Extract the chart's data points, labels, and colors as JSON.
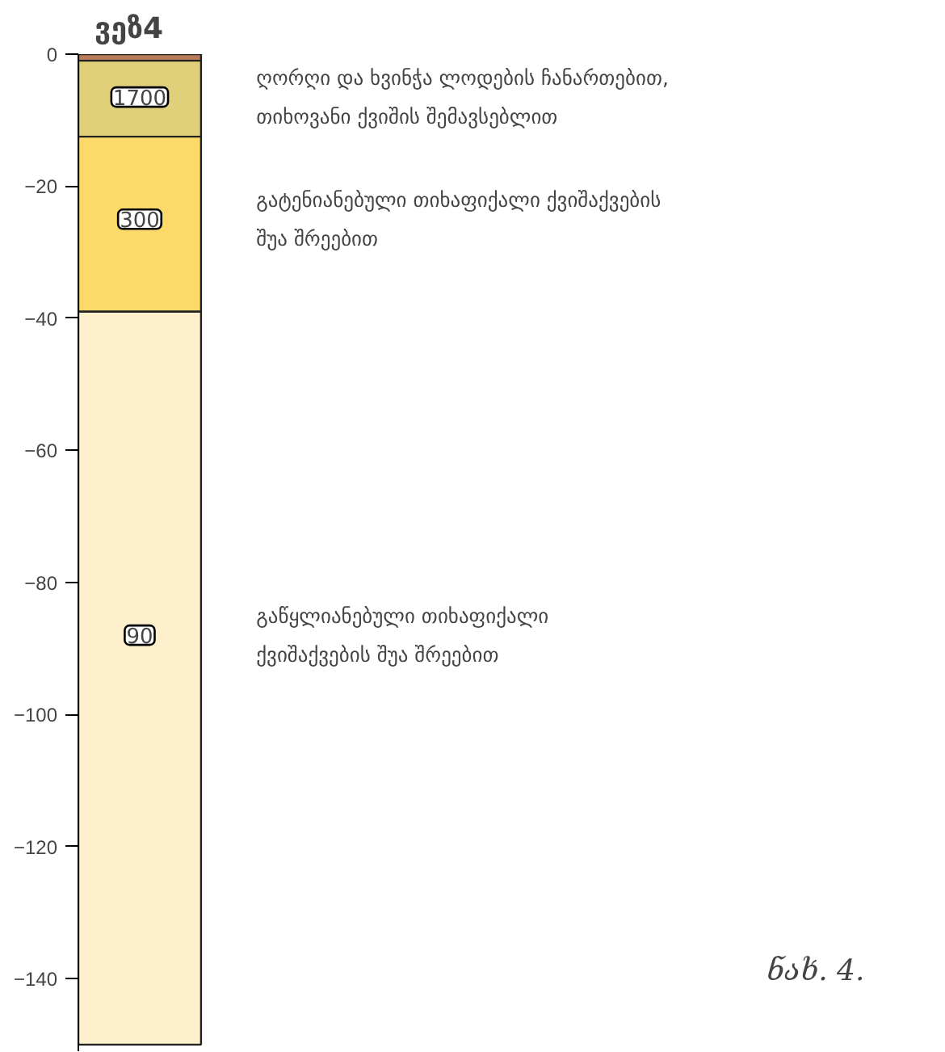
{
  "chart_data": {
    "type": "bar",
    "title": "ვეზ4",
    "categories": [
      null
    ],
    "stacked": true,
    "series": [
      {
        "color": "#b87a5a",
        "values": [
          -1
        ]
      },
      {
        "color": "#e0d07a",
        "values": [
          -11.5
        ]
      },
      {
        "color": "#fdd96a",
        "values": [
          -26.5
        ]
      },
      {
        "color": "#fef0cc",
        "values": [
          -111
        ]
      }
    ],
    "ylim": [
      -151,
      0
    ],
    "yticks": [
      0,
      -20,
      -40,
      -60,
      -80,
      -100,
      -120,
      -140
    ],
    "grid": false,
    "annotations": [
      {
        "text": "1700",
        "y": -6.5
      },
      {
        "text": "300",
        "y": -25
      },
      {
        "text": "90",
        "y": -88
      },
      "ღორღი და ხვინჭა ლოდების ჩანართებით,\nთიხოვანი ქვიშის შემავსებლით",
      "გატენიანებული თიხაფიქალი ქვიშაქვების\nშუა შრეებით",
      "გაწყლიანებული თიხაფიქალი\nქვიშაქვების შუა შრეებით",
      "ნახ. 4."
    ]
  }
}
